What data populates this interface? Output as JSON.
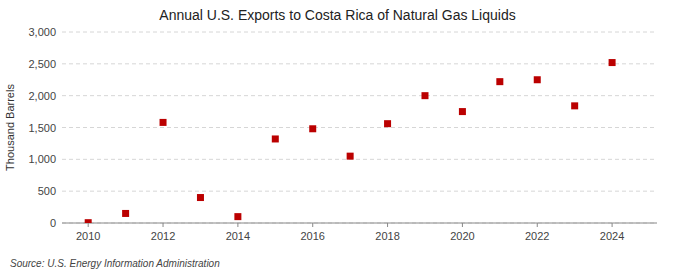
{
  "chart_data": {
    "type": "scatter",
    "title": "Annual U.S. Exports to Costa Rica of Natural Gas Liquids",
    "y_label": "Thousand Barrels",
    "annotations": [
      "Source: U.S. Energy Information Administration"
    ],
    "x": [
      2010,
      2011,
      2012,
      2013,
      2014,
      2015,
      2016,
      2017,
      2018,
      2019,
      2020,
      2021,
      2022,
      2023,
      2024
    ],
    "values": [
      5,
      150,
      1580,
      400,
      100,
      1320,
      1480,
      1050,
      1560,
      2000,
      1750,
      2220,
      2250,
      1840,
      2520
    ],
    "color": "#bb0000",
    "marker": "square",
    "xlim": [
      2009.3,
      2025.2
    ],
    "xticks": [
      2010,
      2012,
      2014,
      2016,
      2018,
      2020,
      2022,
      2024
    ],
    "ylim": [
      0,
      3000
    ],
    "yticks": [
      0,
      500,
      {
        "value": 1000,
        "label": "1,000"
      },
      {
        "value": 1500,
        "label": "1,500"
      },
      {
        "value": 2000,
        "label": "2,000"
      },
      {
        "value": 2500,
        "label": "2,500"
      },
      {
        "value": 3000,
        "label": "3,000"
      }
    ],
    "grid": true
  }
}
